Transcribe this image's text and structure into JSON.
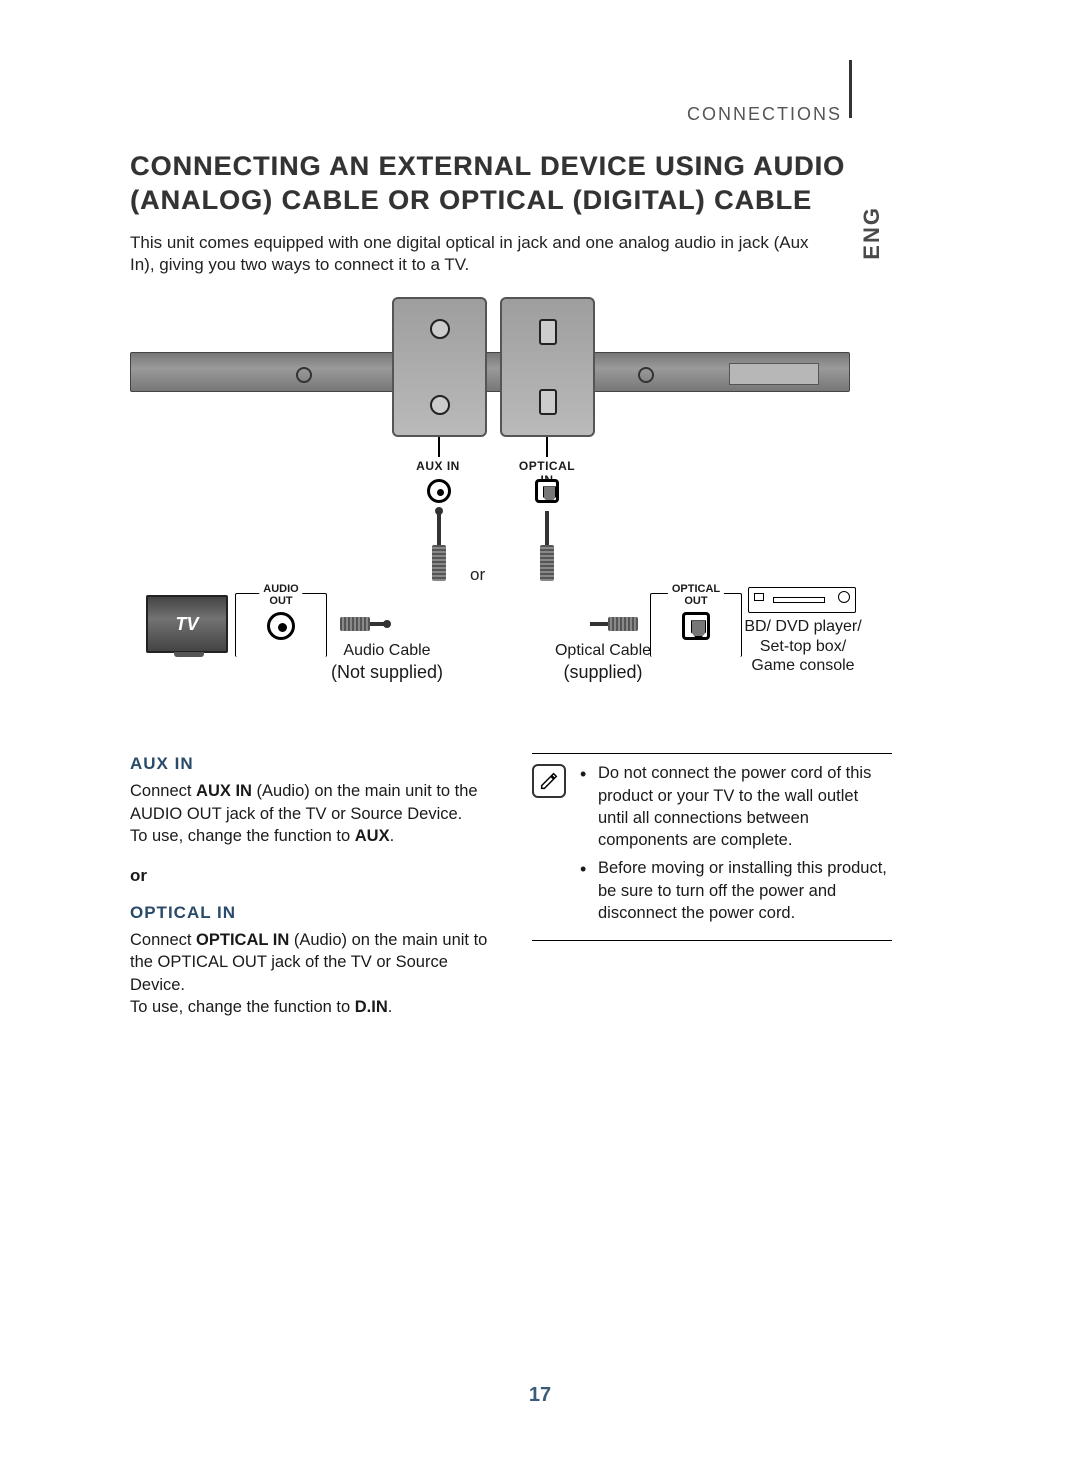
{
  "header": {
    "section": "CONNECTIONS",
    "lang": "ENG"
  },
  "title": "CONNECTING AN EXTERNAL DEVICE USING AUDIO (ANALOG) CABLE OR OPTICAL (DIGITAL) CABLE",
  "intro": "This unit comes equipped with one digital optical in jack and one analog audio in jack (Aux In), giving you two ways to connect it to a TV.",
  "diagram": {
    "port_labels": {
      "aux": "AUX IN",
      "optical": "OPTICAL IN"
    },
    "or_label": "or",
    "groups": {
      "audio_out": "AUDIO OUT",
      "optical_out": "OPTICAL OUT"
    },
    "tv_label": "TV",
    "captions": {
      "audio": {
        "title": "Audio Cable",
        "sub": "(Not supplied)"
      },
      "optical": {
        "title": "Optical Cable",
        "sub": "(supplied)"
      }
    },
    "device_list": "BD/ DVD player/\nSet-top box/\nGame console"
  },
  "instructions": {
    "aux": {
      "heading": "AUX IN",
      "body_pre": "Connect ",
      "body_bold1": "AUX IN",
      "body_mid": " (Audio) on the main unit to the AUDIO OUT jack of the TV or Source Device.\nTo use, change the function to ",
      "body_bold2": "AUX",
      "body_post": "."
    },
    "or_label": "or",
    "optical": {
      "heading": "OPTICAL IN",
      "body_pre": "Connect ",
      "body_bold1": "OPTICAL IN",
      "body_mid": " (Audio) on the main unit to the OPTICAL OUT jack of the TV or Source Device.\nTo use, change the function to ",
      "body_bold2": "D.IN",
      "body_post": "."
    }
  },
  "notes": {
    "items": [
      "Do not connect the power cord of this product or your TV to the wall outlet until all connections between components are complete.",
      "Before moving or installing this product, be sure to turn off the power and disconnect the power cord."
    ]
  },
  "page_number": "17",
  "colors": {
    "heading": "#2a4a6a",
    "pagenum": "#3b5b7a"
  }
}
